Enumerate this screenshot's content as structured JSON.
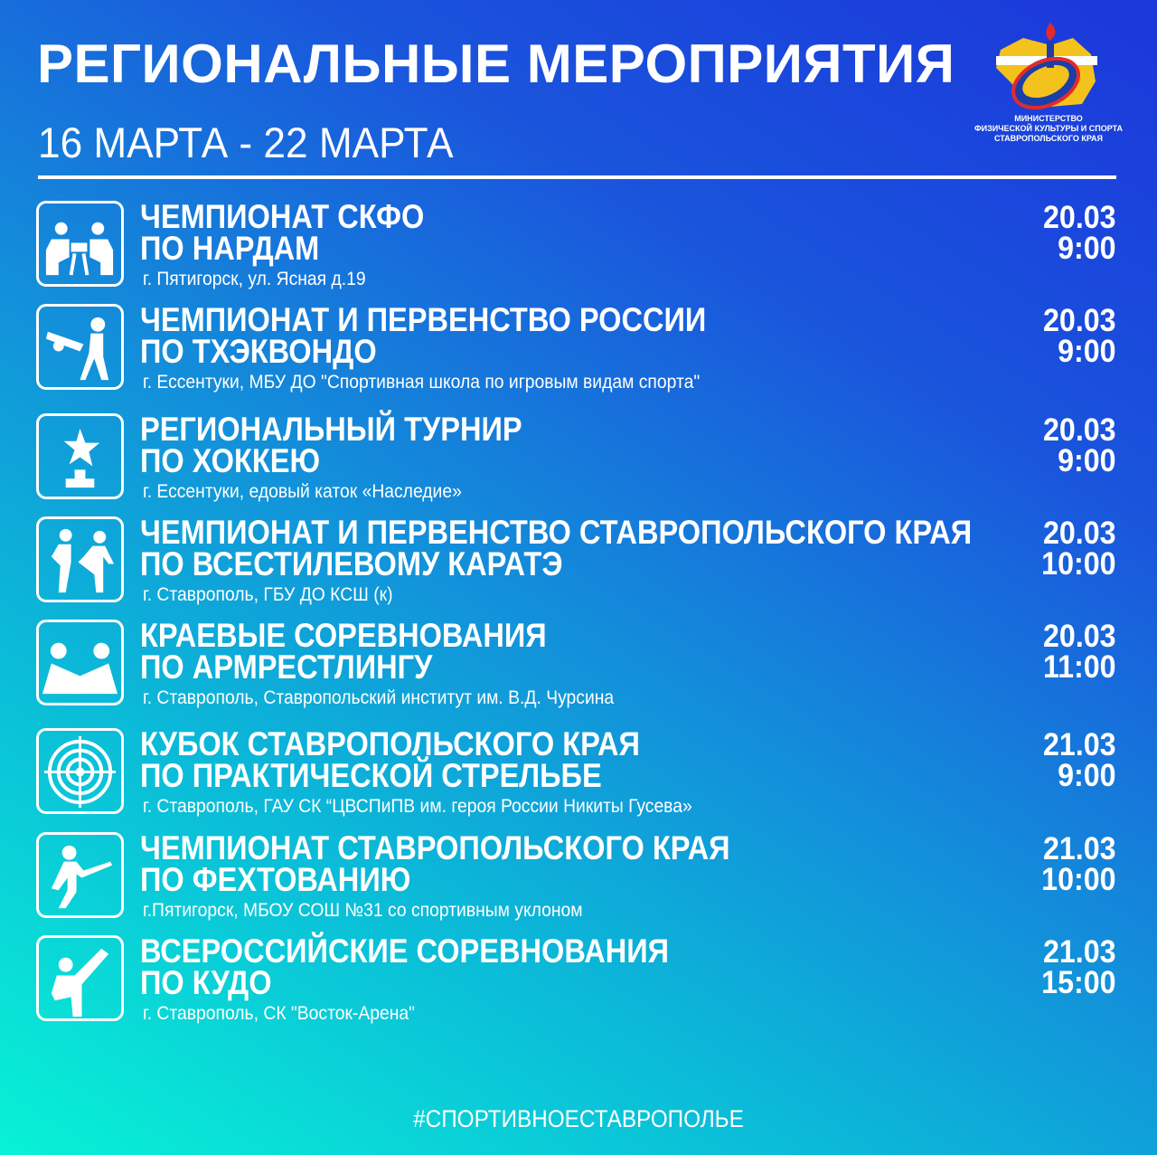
{
  "header": {
    "title": "РЕГИОНАЛЬНЫЕ МЕРОПРИЯТИЯ",
    "dates": "16 МАРТА - 22 МАРТА"
  },
  "logo": {
    "text": "МИНИСТЕРСТВО ФИЗИЧЕСКОЙ КУЛЬТУРЫ И СПОРТА СТАВРОПОЛЬСКОГО КРАЯ",
    "line1": "МИНИСТЕРСТВО",
    "line2": "ФИЗИЧЕСКОЙ КУЛЬТУРЫ И СПОРТА",
    "line3": "СТАВРОПОЛЬСКОГО КРАЯ"
  },
  "colors": {
    "gradient_top": "#1b37db",
    "gradient_bottom": "#08f2d6",
    "text": "#ffffff"
  },
  "events": [
    {
      "icon": "backgammon-icon",
      "title1": "ЧЕМПИОНАТ СКФО",
      "title2": "ПО НАРДАМ",
      "address": "г. Пятигорск, ул. Ясная д.19",
      "date": "20.03",
      "time": "9:00"
    },
    {
      "icon": "taekwondo-icon",
      "title1": "ЧЕМПИОНАТ И ПЕРВЕНСТВО РОССИИ",
      "title2": "ПО ТХЭКВОНДО",
      "address": "г. Ессентуки, МБУ ДО \"Спортивная школа по игровым видам спорта\"",
      "date": "20.03",
      "time": "9:00"
    },
    {
      "icon": "trophy-icon",
      "title1": "РЕГИОНАЛЬНЫЙ ТУРНИР",
      "title2": "ПО ХОККЕЮ",
      "address": "г. Ессентуки, едовый каток «Наследие»",
      "date": "20.03",
      "time": "9:00"
    },
    {
      "icon": "karate-icon",
      "title1": "ЧЕМПИОНАТ И ПЕРВЕНСТВО СТАВРОПОЛЬСКОГО КРАЯ",
      "title2": "ПО ВСЕСТИЛЕВОМУ КАРАТЭ",
      "address": "г. Ставрополь, ГБУ ДО КСШ (к)",
      "date": "20.03",
      "time": "10:00"
    },
    {
      "icon": "armwrestling-icon",
      "title1": "КРАЕВЫЕ СОРЕВНОВАНИЯ",
      "title2": "ПО АРМРЕСТЛИНГУ",
      "address": "г. Ставрополь, Ставропольский институт им. В.Д. Чурсина",
      "date": "20.03",
      "time": "11:00"
    },
    {
      "icon": "target-icon",
      "title1": "КУБОК СТАВРОПОЛЬСКОГО КРАЯ",
      "title2": "ПО ПРАКТИЧЕСКОЙ СТРЕЛЬБЕ",
      "address": "г. Ставрополь, ГАУ СК “ЦВСПиПВ им. героя России Никиты Гусева»",
      "date": "21.03",
      "time": "9:00"
    },
    {
      "icon": "fencing-icon",
      "title1": "ЧЕМПИОНАТ СТАВРОПОЛЬСКОГО КРАЯ",
      "title2": "ПО ФЕХТОВАНИЮ",
      "address": "г.Пятигорск, МБОУ СОШ №31 со спортивным уклоном",
      "date": "21.03",
      "time": "10:00"
    },
    {
      "icon": "kudo-icon",
      "title1": "ВСЕРОССИЙСКИЕ СОРЕВНОВАНИЯ",
      "title2": "ПО КУДО",
      "address": "г. Ставрополь, СК \"Восток-Арена\"",
      "date": "21.03",
      "time": "15:00"
    }
  ],
  "footer": {
    "hashtag": "#СПОРТИВНОЕСТАВРОПОЛЬЕ"
  }
}
